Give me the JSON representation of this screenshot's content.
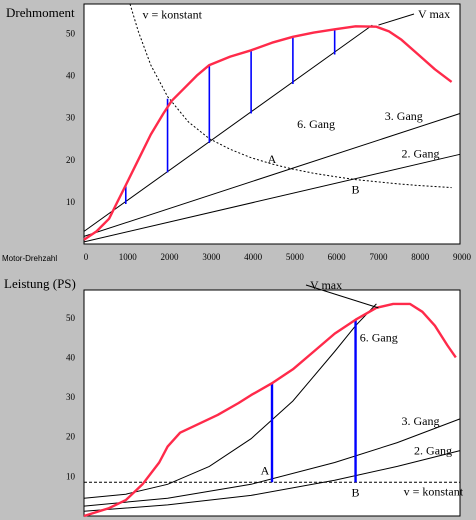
{
  "colors": {
    "background": "#c0c0c0",
    "plot_bg": "#ffffff",
    "curve": "#ff2a4a",
    "marker": "#0000ff",
    "line": "#000000"
  },
  "chart_data": [
    {
      "type": "line",
      "title": "Drehmoment",
      "xlabel": "Motor-Drehzahl",
      "ylabel": "Drehmoment",
      "xlim": [
        0,
        9000
      ],
      "ylim": [
        0,
        57
      ],
      "x_ticks": [
        "0",
        "1000",
        "2000",
        "3000",
        "4000",
        "5000",
        "6000",
        "7000",
        "8000",
        "9000"
      ],
      "y_ticks": [
        "10",
        "20",
        "30",
        "40",
        "50"
      ],
      "curve": {
        "x": [
          0,
          300,
          600,
          800,
          1000,
          1300,
          1600,
          1900,
          2100,
          2400,
          2700,
          3000,
          3500,
          4000,
          4500,
          5000,
          5500,
          6000,
          6500,
          7000,
          7300,
          7600,
          8000,
          8400,
          8800
        ],
        "y": [
          1,
          3,
          6,
          10,
          14,
          20,
          26,
          31,
          34,
          37,
          40,
          42.5,
          44.5,
          46,
          47.8,
          49.2,
          50.2,
          51,
          51.7,
          51.6,
          50.5,
          48.5,
          45,
          41.5,
          38.5
        ]
      },
      "lines": [
        {
          "name": "6. Gang",
          "x": [
            0,
            6900
          ],
          "y": [
            3,
            52
          ],
          "label_x": 5100,
          "label_y": 27.5
        },
        {
          "name": "3. Gang",
          "x": [
            0,
            9000
          ],
          "y": [
            1.8,
            31
          ],
          "label_x": 7200,
          "label_y": 29.5
        },
        {
          "name": "2. Gang",
          "x": [
            0,
            9000
          ],
          "y": [
            0.5,
            21.3
          ],
          "label_x": 7600,
          "label_y": 20.5
        }
      ],
      "hyperbola": {
        "label": "v = konstant",
        "x": [
          1100,
          1300,
          1600,
          2000,
          2500,
          3000,
          3500,
          4000,
          4500,
          5000,
          5500,
          6000,
          6500,
          7000,
          7500,
          8000,
          8800
        ],
        "y": [
          57,
          50.5,
          42.5,
          35,
          29,
          25,
          22.5,
          20.5,
          19,
          17.8,
          16.8,
          16,
          15.3,
          14.8,
          14.3,
          13.9,
          13.4
        ]
      },
      "markers": [
        {
          "x": 1000,
          "y_low": 9.5,
          "y_high": 14
        },
        {
          "x": 2000,
          "y_low": 17,
          "y_high": 34.5
        },
        {
          "x": 3000,
          "y_low": 24,
          "y_high": 42.5
        },
        {
          "x": 4000,
          "y_low": 31,
          "y_high": 46
        },
        {
          "x": 5000,
          "y_low": 38,
          "y_high": 49.2
        },
        {
          "x": 6000,
          "y_low": 45,
          "y_high": 51
        }
      ],
      "points": [
        {
          "label": "A",
          "x": 4500,
          "y": 17.8
        },
        {
          "label": "B",
          "x": 6500,
          "y": 15.3
        }
      ],
      "annotation": {
        "text": "V max",
        "x": 7000,
        "y": 52
      }
    },
    {
      "type": "line",
      "title": "Leistung (PS)",
      "xlabel": "",
      "ylabel": "Leistung (PS)",
      "xlim": [
        0,
        9000
      ],
      "ylim": [
        0,
        57
      ],
      "y_ticks": [
        "10",
        "20",
        "30",
        "40",
        "50"
      ],
      "curve": {
        "x": [
          0,
          600,
          1000,
          1400,
          1800,
          2000,
          2300,
          2700,
          3200,
          3700,
          4000,
          4500,
          5000,
          5500,
          6000,
          6500,
          7000,
          7400,
          7800,
          8100,
          8400,
          8700,
          8900
        ],
        "y": [
          0,
          2,
          4,
          8,
          13.5,
          17.5,
          21,
          23,
          25.5,
          28.5,
          30.5,
          33.5,
          37,
          41.5,
          46,
          49.5,
          52.5,
          53.5,
          53.5,
          51.5,
          48,
          43,
          40
        ]
      },
      "lines": [
        {
          "name": "6. Gang",
          "x": [
            0,
            1000,
            2000,
            3000,
            4000,
            5000,
            6000,
            6500,
            7000
          ],
          "y": [
            4.5,
            5.5,
            8,
            12.5,
            19.5,
            29,
            41.5,
            48,
            53.5
          ],
          "label_x": 6600,
          "label_y": 44
        },
        {
          "name": "3. Gang",
          "x": [
            0,
            2000,
            4000,
            6000,
            7500,
            9000
          ],
          "y": [
            2.5,
            4.5,
            8,
            13.5,
            18.5,
            24.5
          ],
          "label_x": 7600,
          "label_y": 23
        },
        {
          "name": "2. Gang",
          "x": [
            0,
            2000,
            4000,
            6000,
            7500,
            9000
          ],
          "y": [
            1.2,
            2.8,
            5.2,
            9,
            12.5,
            16.5
          ],
          "label_x": 7900,
          "label_y": 15.5
        }
      ],
      "hline": {
        "label": "v = konstant",
        "y": 8.5
      },
      "markers": [
        {
          "x": 4500,
          "y_low": 8.5,
          "y_high": 33.5
        },
        {
          "x": 6500,
          "y_low": 8.5,
          "y_high": 49.5
        }
      ],
      "points": [
        {
          "label": "A",
          "x": 4500,
          "y": 8.5
        },
        {
          "label": "B",
          "x": 6500,
          "y": 8.5
        }
      ],
      "annotation": {
        "text": "V max",
        "x": 7000,
        "y": 52.5
      }
    }
  ]
}
